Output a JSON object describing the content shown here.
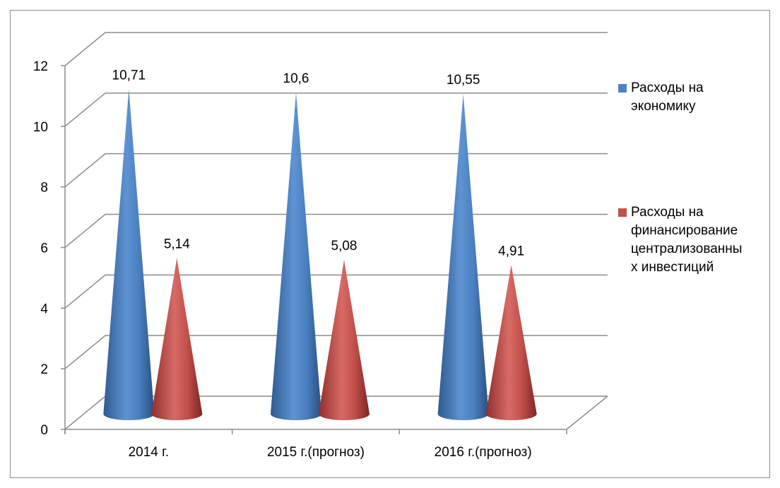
{
  "chart_data": {
    "type": "bar",
    "categories": [
      "2014 г.",
      "2015 г.(прогноз)",
      "2016 г.(прогноз)"
    ],
    "series": [
      {
        "name": "Расходы на\nэкономику",
        "values": [
          10.71,
          10.6,
          10.55
        ],
        "color": "#4f81bd"
      },
      {
        "name": "Расходы на\nфинансирование\nцентрализованны\nх инвестиций",
        "values": [
          5.14,
          5.08,
          4.91
        ],
        "color": "#c0504d"
      }
    ],
    "data_labels": [
      [
        "10,71",
        "10,6",
        "10,55"
      ],
      [
        "5,14",
        "5,08",
        "4,91"
      ]
    ],
    "y_ticks": [
      "0",
      "2",
      "4",
      "6",
      "8",
      "10",
      "12"
    ],
    "ylim": [
      0,
      12
    ],
    "grid": true,
    "legend_position": "right",
    "mark_shape": "cone",
    "title": "",
    "xlabel": "",
    "ylabel": ""
  }
}
